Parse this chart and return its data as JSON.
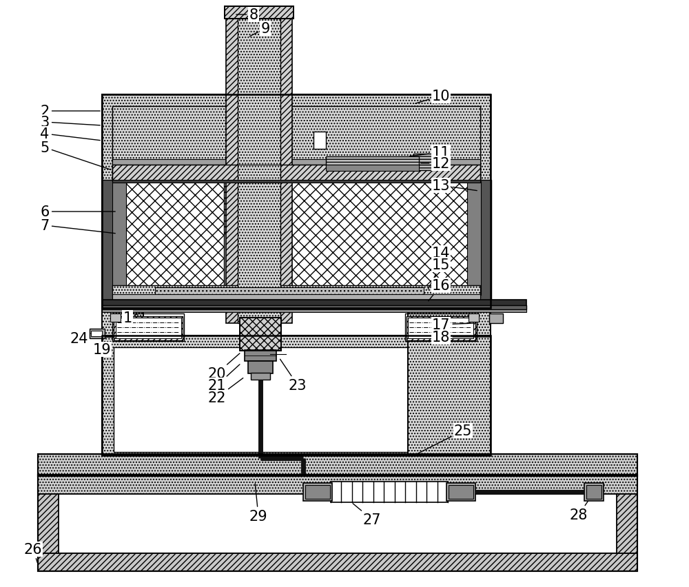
{
  "bg_color": "#ffffff",
  "line_color": "#000000",
  "annotations": [
    [
      1,
      185,
      462,
      200,
      455
    ],
    [
      2,
      68,
      162,
      148,
      158
    ],
    [
      3,
      68,
      178,
      148,
      178
    ],
    [
      4,
      68,
      195,
      148,
      200
    ],
    [
      5,
      68,
      215,
      148,
      225
    ],
    [
      6,
      68,
      310,
      165,
      308
    ],
    [
      7,
      68,
      330,
      165,
      340
    ],
    [
      8,
      368,
      22,
      348,
      22
    ],
    [
      9,
      383,
      42,
      362,
      55
    ],
    [
      10,
      635,
      140,
      595,
      155
    ],
    [
      11,
      635,
      222,
      590,
      228
    ],
    [
      12,
      635,
      238,
      590,
      240
    ],
    [
      13,
      635,
      270,
      640,
      272
    ],
    [
      14,
      635,
      368,
      635,
      388
    ],
    [
      15,
      635,
      385,
      618,
      416
    ],
    [
      16,
      635,
      415,
      618,
      435
    ],
    [
      1,
      185,
      462,
      200,
      455
    ],
    [
      17,
      635,
      472,
      615,
      470
    ],
    [
      18,
      635,
      490,
      670,
      490
    ],
    [
      19,
      148,
      508,
      160,
      500
    ],
    [
      20,
      318,
      543,
      355,
      510
    ],
    [
      21,
      318,
      560,
      355,
      528
    ],
    [
      22,
      318,
      578,
      355,
      545
    ],
    [
      23,
      430,
      560,
      400,
      528
    ],
    [
      24,
      118,
      492,
      135,
      484
    ],
    [
      25,
      670,
      628,
      590,
      640
    ],
    [
      26,
      50,
      798,
      50,
      820
    ],
    [
      27,
      540,
      755,
      510,
      726
    ],
    [
      28,
      835,
      748,
      850,
      726
    ],
    [
      29,
      378,
      750,
      360,
      700
    ]
  ]
}
